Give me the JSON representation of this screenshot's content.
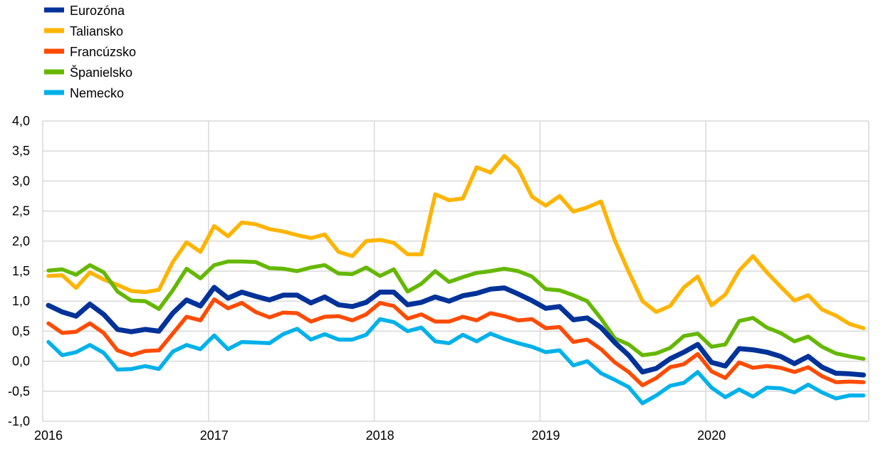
{
  "chart_data": {
    "type": "line",
    "title": "",
    "xlabel": "",
    "ylabel": "",
    "ylim": [
      -1.0,
      4.0
    ],
    "yticks": [
      "4,0",
      "3,5",
      "3,0",
      "2,5",
      "2,0",
      "1,5",
      "1,0",
      "0,5",
      "0,0",
      "-0,5",
      "-1,0"
    ],
    "ytick_values": [
      4.0,
      3.5,
      3.0,
      2.5,
      2.0,
      1.5,
      1.0,
      0.5,
      0.0,
      -0.5,
      -1.0
    ],
    "xticks": [
      "2016",
      "2017",
      "2018",
      "2019",
      "2020"
    ],
    "x_frequency": "monthly",
    "x_range": [
      "2016-01",
      "2020-12"
    ],
    "grid": true,
    "legend_placement": "top-left",
    "series": [
      {
        "name": "Eurozóna",
        "color": "#003299",
        "values": [
          0.93,
          0.82,
          0.75,
          0.95,
          0.78,
          0.53,
          0.49,
          0.53,
          0.5,
          0.8,
          1.02,
          0.92,
          1.23,
          1.05,
          1.15,
          1.08,
          1.02,
          1.1,
          1.1,
          0.97,
          1.07,
          0.94,
          0.91,
          0.98,
          1.15,
          1.15,
          0.94,
          0.98,
          1.07,
          1.0,
          1.09,
          1.13,
          1.2,
          1.22,
          1.12,
          1.01,
          0.88,
          0.91,
          0.69,
          0.72,
          0.56,
          0.31,
          0.1,
          -0.18,
          -0.12,
          0.04,
          0.15,
          0.28,
          -0.02,
          -0.08,
          0.21,
          0.19,
          0.15,
          0.08,
          -0.04,
          0.08,
          -0.1,
          -0.2,
          -0.21,
          -0.23
        ]
      },
      {
        "name": "Taliansko",
        "color": "#FFB400",
        "values": [
          1.42,
          1.43,
          1.22,
          1.48,
          1.36,
          1.27,
          1.17,
          1.15,
          1.19,
          1.65,
          1.98,
          1.82,
          2.25,
          2.08,
          2.31,
          2.28,
          2.2,
          2.16,
          2.1,
          2.05,
          2.11,
          1.82,
          1.75,
          2.0,
          2.02,
          1.97,
          1.78,
          1.78,
          2.78,
          2.68,
          2.71,
          3.23,
          3.14,
          3.42,
          3.21,
          2.74,
          2.59,
          2.75,
          2.49,
          2.56,
          2.66,
          2.01,
          1.49,
          1.0,
          0.82,
          0.92,
          1.23,
          1.41,
          0.93,
          1.11,
          1.51,
          1.75,
          1.48,
          1.24,
          1.01,
          1.1,
          0.86,
          0.76,
          0.62,
          0.55
        ]
      },
      {
        "name": "Francúzsko",
        "color": "#FF4B00",
        "values": [
          0.63,
          0.47,
          0.49,
          0.63,
          0.47,
          0.18,
          0.1,
          0.17,
          0.18,
          0.46,
          0.74,
          0.68,
          1.03,
          0.88,
          0.97,
          0.82,
          0.73,
          0.81,
          0.8,
          0.66,
          0.74,
          0.75,
          0.68,
          0.78,
          0.97,
          0.92,
          0.71,
          0.78,
          0.66,
          0.66,
          0.74,
          0.68,
          0.8,
          0.75,
          0.68,
          0.7,
          0.55,
          0.57,
          0.32,
          0.36,
          0.2,
          -0.02,
          -0.18,
          -0.4,
          -0.28,
          -0.1,
          -0.05,
          0.12,
          -0.17,
          -0.28,
          -0.02,
          -0.11,
          -0.08,
          -0.11,
          -0.18,
          -0.1,
          -0.25,
          -0.35,
          -0.34,
          -0.35
        ]
      },
      {
        "name": "Španielsko",
        "color": "#65B800",
        "values": [
          1.51,
          1.53,
          1.44,
          1.6,
          1.48,
          1.16,
          1.01,
          1.0,
          0.87,
          1.18,
          1.54,
          1.38,
          1.6,
          1.66,
          1.66,
          1.65,
          1.55,
          1.54,
          1.5,
          1.56,
          1.6,
          1.46,
          1.45,
          1.56,
          1.42,
          1.53,
          1.16,
          1.29,
          1.5,
          1.32,
          1.4,
          1.47,
          1.5,
          1.54,
          1.5,
          1.41,
          1.2,
          1.18,
          1.1,
          1.0,
          0.71,
          0.38,
          0.28,
          0.1,
          0.13,
          0.22,
          0.42,
          0.46,
          0.24,
          0.28,
          0.67,
          0.72,
          0.56,
          0.47,
          0.33,
          0.41,
          0.24,
          0.13,
          0.08,
          0.04
        ]
      },
      {
        "name": "Nemecko",
        "color": "#00B1EA",
        "values": [
          0.32,
          0.1,
          0.15,
          0.27,
          0.14,
          -0.14,
          -0.13,
          -0.08,
          -0.13,
          0.16,
          0.27,
          0.2,
          0.43,
          0.2,
          0.32,
          0.31,
          0.3,
          0.45,
          0.54,
          0.36,
          0.45,
          0.36,
          0.36,
          0.44,
          0.7,
          0.65,
          0.5,
          0.56,
          0.33,
          0.3,
          0.44,
          0.33,
          0.46,
          0.37,
          0.3,
          0.24,
          0.15,
          0.18,
          -0.07,
          0.0,
          -0.2,
          -0.31,
          -0.43,
          -0.7,
          -0.57,
          -0.41,
          -0.36,
          -0.18,
          -0.44,
          -0.6,
          -0.47,
          -0.59,
          -0.44,
          -0.45,
          -0.52,
          -0.39,
          -0.52,
          -0.62,
          -0.57,
          -0.57
        ]
      }
    ]
  }
}
